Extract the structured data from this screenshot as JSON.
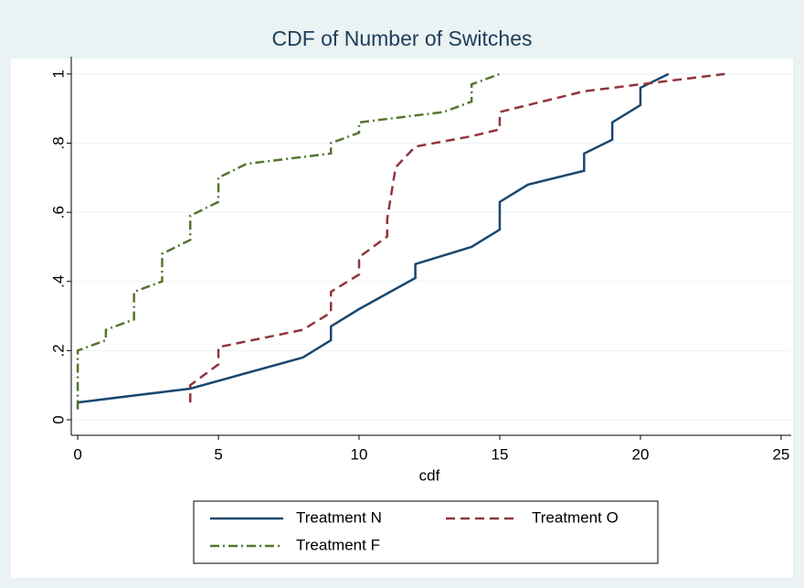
{
  "chart_data": {
    "type": "line",
    "title": "CDF of Number of Switches",
    "x_label": "cdf",
    "xlim": [
      -0.23,
      25.36
    ],
    "ylim": [
      -0.045,
      1.05
    ],
    "xticks": [
      0,
      5,
      10,
      15,
      20,
      25
    ],
    "yticks": [
      0,
      {
        "value": 0.2,
        "label": ".2"
      },
      {
        "value": 0.4,
        "label": ".4"
      },
      {
        "value": 0.6,
        "label": ".6"
      },
      {
        "value": 0.8,
        "label": ".8"
      },
      1
    ],
    "grid": true,
    "series": [
      {
        "name": "Treatment N",
        "color": "#1a476f",
        "dash": "solid",
        "x": [
          0,
          4,
          8,
          9,
          9,
          10,
          12,
          12,
          14,
          15,
          15,
          16,
          18,
          18,
          19,
          19,
          20,
          20,
          21
        ],
        "values": [
          0.05,
          0.09,
          0.18,
          0.23,
          0.27,
          0.32,
          0.41,
          0.45,
          0.5,
          0.55,
          0.63,
          0.68,
          0.72,
          0.77,
          0.81,
          0.86,
          0.91,
          0.96,
          1.0
        ]
      },
      {
        "name": "Treatment O",
        "color": "#90353b",
        "dash": "dash",
        "x": [
          4,
          4,
          5,
          5,
          8,
          9,
          9,
          10,
          10,
          11,
          11,
          11.3,
          12,
          14,
          15,
          15,
          16,
          18,
          20,
          21,
          23
        ],
        "values": [
          0.05,
          0.1,
          0.16,
          0.21,
          0.26,
          0.31,
          0.37,
          0.42,
          0.47,
          0.53,
          0.58,
          0.73,
          0.79,
          0.82,
          0.84,
          0.89,
          0.91,
          0.95,
          0.97,
          0.98,
          1.0
        ]
      },
      {
        "name": "Treatment F",
        "color": "#55752f",
        "dash": "dashdot",
        "x": [
          0,
          0,
          1,
          1,
          2,
          2,
          3,
          3,
          4,
          4,
          5,
          5,
          6,
          8,
          9,
          9,
          10,
          10,
          12,
          13,
          14,
          14,
          15
        ],
        "values": [
          0.03,
          0.2,
          0.23,
          0.26,
          0.29,
          0.37,
          0.4,
          0.48,
          0.52,
          0.59,
          0.63,
          0.7,
          0.74,
          0.76,
          0.77,
          0.8,
          0.83,
          0.86,
          0.88,
          0.89,
          0.92,
          0.97,
          1.0
        ]
      }
    ]
  }
}
